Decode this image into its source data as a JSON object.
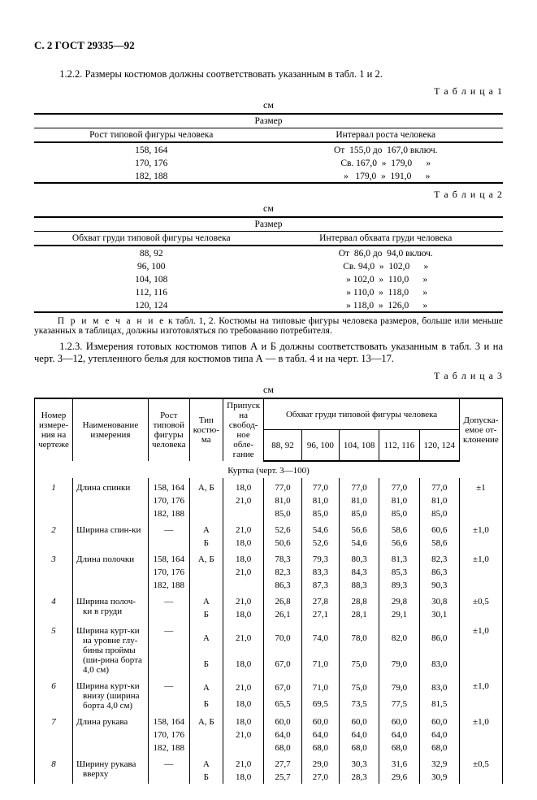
{
  "header": "С. 2  ГОСТ 29335—92",
  "para_122": "1.2.2.  Размеры костюмов должны соответствовать указанным в табл. 1 и 2.",
  "t1": {
    "label": "Т а б л и ц а  1",
    "unit": "см",
    "razmer": "Размер",
    "col_left": "Рост типовой фигуры человека",
    "col_right": "Интервал роста человека",
    "rows": [
      {
        "l": "158, 164",
        "r": "От  155,0 до  167,0 включ."
      },
      {
        "l": "170, 176",
        "r": "Св. 167,0  »  179,0      »"
      },
      {
        "l": "182, 188",
        "r": " »   179,0  »  191,0      »"
      }
    ]
  },
  "t2": {
    "label": "Т а б л и ц а  2",
    "unit": "см",
    "razmer": "Размер",
    "col_left": "Обхват груди типовой фигуры человека",
    "col_right": "Интервал обхвата груди человека",
    "rows": [
      {
        "l": "88,  92",
        "r": "От  86,0 до  94,0 включ."
      },
      {
        "l": "96, 100",
        "r": "Св. 94,0  »  102,0      »"
      },
      {
        "l": "104, 108",
        "r": " » 102,0  »  110,0      »"
      },
      {
        "l": "112, 116",
        "r": " » 110,0  »  118,0      »"
      },
      {
        "l": "120, 124",
        "r": " » 118,0  »  126,0      »"
      }
    ]
  },
  "note_1_2": {
    "lead": "П р и м е ч а н и е",
    "body": "  к  табл. 1, 2.  Костюмы на типовые фигуры человека размеров, больше или меньше указанных в таблицах, должны изготовляться по требованию потребителя."
  },
  "para_123": "1.2.3.  Измерения готовых костюмов типов А и Б должны соответствовать указанным в табл. 3 и на черт. 3—12, утепленного белья для костюмов типа А — в табл. 4 и на черт. 13—17.",
  "t3": {
    "label": "Т а б л и ц а  3",
    "unit": "см",
    "head": {
      "c1": "Номер измере-ния на чертеже",
      "c2": "Наименование измерения",
      "c3": "Рост типовой фигуры человека",
      "c4": "Тип костю-ма",
      "c5": "Припуск на свобод-ное обле-гание",
      "c6_group": "Обхват груди типовой фигуры человека",
      "c6": [
        "88, 92",
        "96, 100",
        "104, 108",
        "112, 116",
        "120, 124"
      ],
      "c7": "Допуска-емое от-клонение"
    },
    "section": "Куртка (черт. 3—100)",
    "rows": [
      {
        "n": "1",
        "name": "Длина спинки",
        "rost": [
          "158, 164",
          "170, 176",
          "182, 188"
        ],
        "type": "А, Б",
        "pri": [
          "18,0",
          "21,0",
          " "
        ],
        "v": [
          [
            "77,0",
            "77,0",
            "77,0",
            "77,0",
            "77,0"
          ],
          [
            "81,0",
            "81,0",
            "81,0",
            "81,0",
            "81,0"
          ],
          [
            "85,0",
            "85,0",
            "85,0",
            "85,0",
            "85,0"
          ]
        ],
        "tol": "±1"
      },
      {
        "n": "2",
        "name": "Ширина спин-ки",
        "rost": [
          "—"
        ],
        "type": [
          "А",
          "Б"
        ],
        "pri": [
          "21,0",
          "18,0"
        ],
        "v": [
          [
            "52,6",
            "54,6",
            "56,6",
            "58,6",
            "60,6"
          ],
          [
            "50,6",
            "52,6",
            "54,6",
            "56,6",
            "58,6"
          ]
        ],
        "tol": "±1,0"
      },
      {
        "n": "3",
        "name": "Длина полочки",
        "rost": [
          "158, 164",
          "170, 176",
          "182, 188"
        ],
        "type": "А, Б",
        "pri": [
          "18,0",
          "21,0",
          " "
        ],
        "v": [
          [
            "78,3",
            "79,3",
            "80,3",
            "81,3",
            "82,3"
          ],
          [
            "82,3",
            "83,3",
            "84,3",
            "85,3",
            "86,3"
          ],
          [
            "86,3",
            "87,3",
            "88,3",
            "89,3",
            "90,3"
          ]
        ],
        "tol": "±1,0"
      },
      {
        "n": "4",
        "name": "Ширина полоч-ки в груди",
        "rost": [
          "—"
        ],
        "type": [
          "А",
          "Б"
        ],
        "pri": [
          "21,0",
          "18,0"
        ],
        "v": [
          [
            "26,8",
            "27,8",
            "28,8",
            "29,8",
            "30,8"
          ],
          [
            "26,1",
            "27,1",
            "28,1",
            "29,1",
            "30,1"
          ]
        ],
        "tol": "±0,5"
      },
      {
        "n": "5",
        "name": "Ширина курт-ки на уровне глу-бины проймы (ши-рина борта 4,0 см)",
        "rost": [
          "—"
        ],
        "type": [
          "А",
          "Б"
        ],
        "pri": [
          "21,0",
          "18,0"
        ],
        "v": [
          [
            "70,0",
            "74,0",
            "78,0",
            "82,0",
            "86,0"
          ],
          [
            "67,0",
            "71,0",
            "75,0",
            "79,0",
            "83,0"
          ]
        ],
        "tol": "±1,0"
      },
      {
        "n": "6",
        "name": "Ширина курт-ки внизу (ширина борта 4,0 см)",
        "rost": [
          "—"
        ],
        "type": [
          "А",
          "Б"
        ],
        "pri": [
          "21,0",
          "18,0"
        ],
        "v": [
          [
            "67,0",
            "71,0",
            "75,0",
            "79,0",
            "83,0"
          ],
          [
            "65,5",
            "69,5",
            "73,5",
            "77,5",
            "81,5"
          ]
        ],
        "tol": "±1,0"
      },
      {
        "n": "7",
        "name": "Длина рукава",
        "rost": [
          "158, 164",
          "170, 176",
          "182, 188"
        ],
        "type": "А, Б",
        "pri": [
          "18,0",
          "21,0",
          " "
        ],
        "v": [
          [
            "60,0",
            "60,0",
            "60,0",
            "60,0",
            "60,0"
          ],
          [
            "64,0",
            "64,0",
            "64,0",
            "64,0",
            "64,0"
          ],
          [
            "68,0",
            "68,0",
            "68,0",
            "68,0",
            "68,0"
          ]
        ],
        "tol": "±1,0"
      },
      {
        "n": "8",
        "name": "Ширину рукава вверху",
        "rost": [
          "—"
        ],
        "type": [
          "А",
          "Б"
        ],
        "pri": [
          "21,0",
          "18,0"
        ],
        "v": [
          [
            "27,7",
            "29,0",
            "30,3",
            "31,6",
            "32,9"
          ],
          [
            "25,7",
            "27,0",
            "28,3",
            "29,6",
            "30,9"
          ]
        ],
        "tol": "±0,5"
      }
    ]
  }
}
